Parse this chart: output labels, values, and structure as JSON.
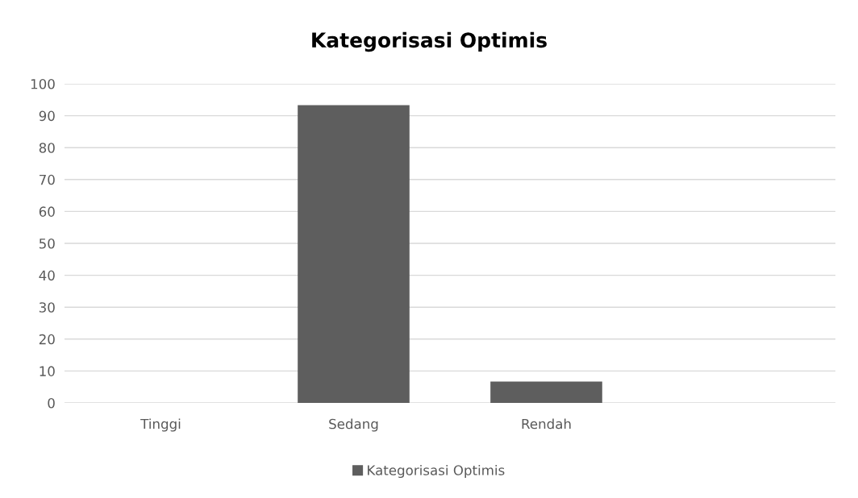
{
  "chart_data": {
    "type": "bar",
    "title": "Kategorisasi Optimis",
    "categories": [
      "Tinggi",
      "Sedang",
      "Rendah",
      null
    ],
    "series": [
      {
        "name": "Kategorisasi Optimis",
        "color": "#5e5e5e",
        "values": [
          0,
          93.3,
          6.7,
          null
        ]
      }
    ],
    "ylim": [
      0,
      100
    ],
    "yticks": [
      0,
      10,
      20,
      30,
      40,
      50,
      60,
      70,
      80,
      90,
      100
    ],
    "grid": "y",
    "legend": "bottom"
  }
}
